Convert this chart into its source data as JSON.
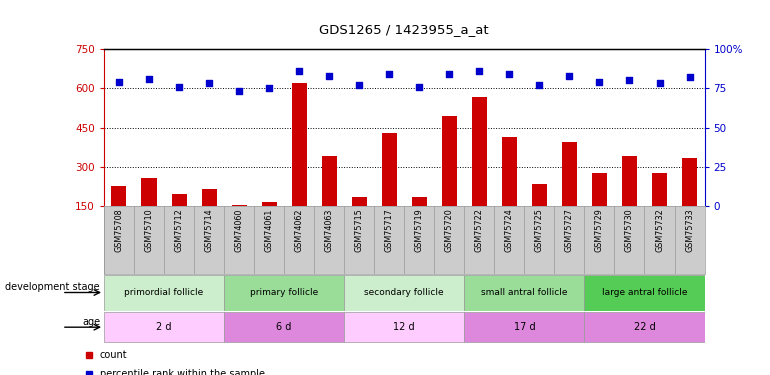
{
  "title": "GDS1265 / 1423955_a_at",
  "samples": [
    "GSM75708",
    "GSM75710",
    "GSM75712",
    "GSM75714",
    "GSM74060",
    "GSM74061",
    "GSM74062",
    "GSM74063",
    "GSM75715",
    "GSM75717",
    "GSM75719",
    "GSM75720",
    "GSM75722",
    "GSM75724",
    "GSM75725",
    "GSM75727",
    "GSM75729",
    "GSM75730",
    "GSM75732",
    "GSM75733"
  ],
  "counts": [
    228,
    258,
    195,
    215,
    155,
    165,
    618,
    340,
    185,
    430,
    185,
    495,
    565,
    415,
    235,
    395,
    275,
    340,
    275,
    335
  ],
  "percentile_ranks": [
    79,
    81,
    76,
    78,
    73,
    75,
    86,
    83,
    77,
    84,
    76,
    84,
    86,
    84,
    77,
    83,
    79,
    80,
    78,
    82
  ],
  "ylim_left": [
    150,
    750
  ],
  "ylim_right": [
    0,
    100
  ],
  "yticks_left": [
    150,
    300,
    450,
    600,
    750
  ],
  "yticks_right": [
    0,
    25,
    50,
    75,
    100
  ],
  "ytick_labels_right": [
    "0",
    "25",
    "50",
    "75",
    "100%"
  ],
  "hlines": [
    300,
    450,
    600
  ],
  "bar_color": "#cc0000",
  "scatter_color": "#0000cc",
  "groups": [
    {
      "label": "primordial follicle",
      "start": 0,
      "end": 4
    },
    {
      "label": "primary follicle",
      "start": 4,
      "end": 8
    },
    {
      "label": "secondary follicle",
      "start": 8,
      "end": 12
    },
    {
      "label": "small antral follicle",
      "start": 12,
      "end": 16
    },
    {
      "label": "large antral follicle",
      "start": 16,
      "end": 20
    }
  ],
  "group_colors": [
    "#cceecc",
    "#99dd99",
    "#cceecc",
    "#99dd99",
    "#55cc55"
  ],
  "ages": [
    {
      "label": "2 d",
      "start": 0,
      "end": 4
    },
    {
      "label": "6 d",
      "start": 4,
      "end": 8
    },
    {
      "label": "12 d",
      "start": 8,
      "end": 12
    },
    {
      "label": "17 d",
      "start": 12,
      "end": 16
    },
    {
      "label": "22 d",
      "start": 16,
      "end": 20
    }
  ],
  "age_colors": [
    "#ffccff",
    "#dd88dd",
    "#ffccff",
    "#dd88dd",
    "#dd88dd"
  ],
  "sample_bg_color": "#cccccc",
  "legend_count_color": "#cc0000",
  "legend_pct_color": "#0000cc",
  "bg_color": "#ffffff",
  "bar_color_left": "#cc0000",
  "bar_color_right": "#0000cc"
}
